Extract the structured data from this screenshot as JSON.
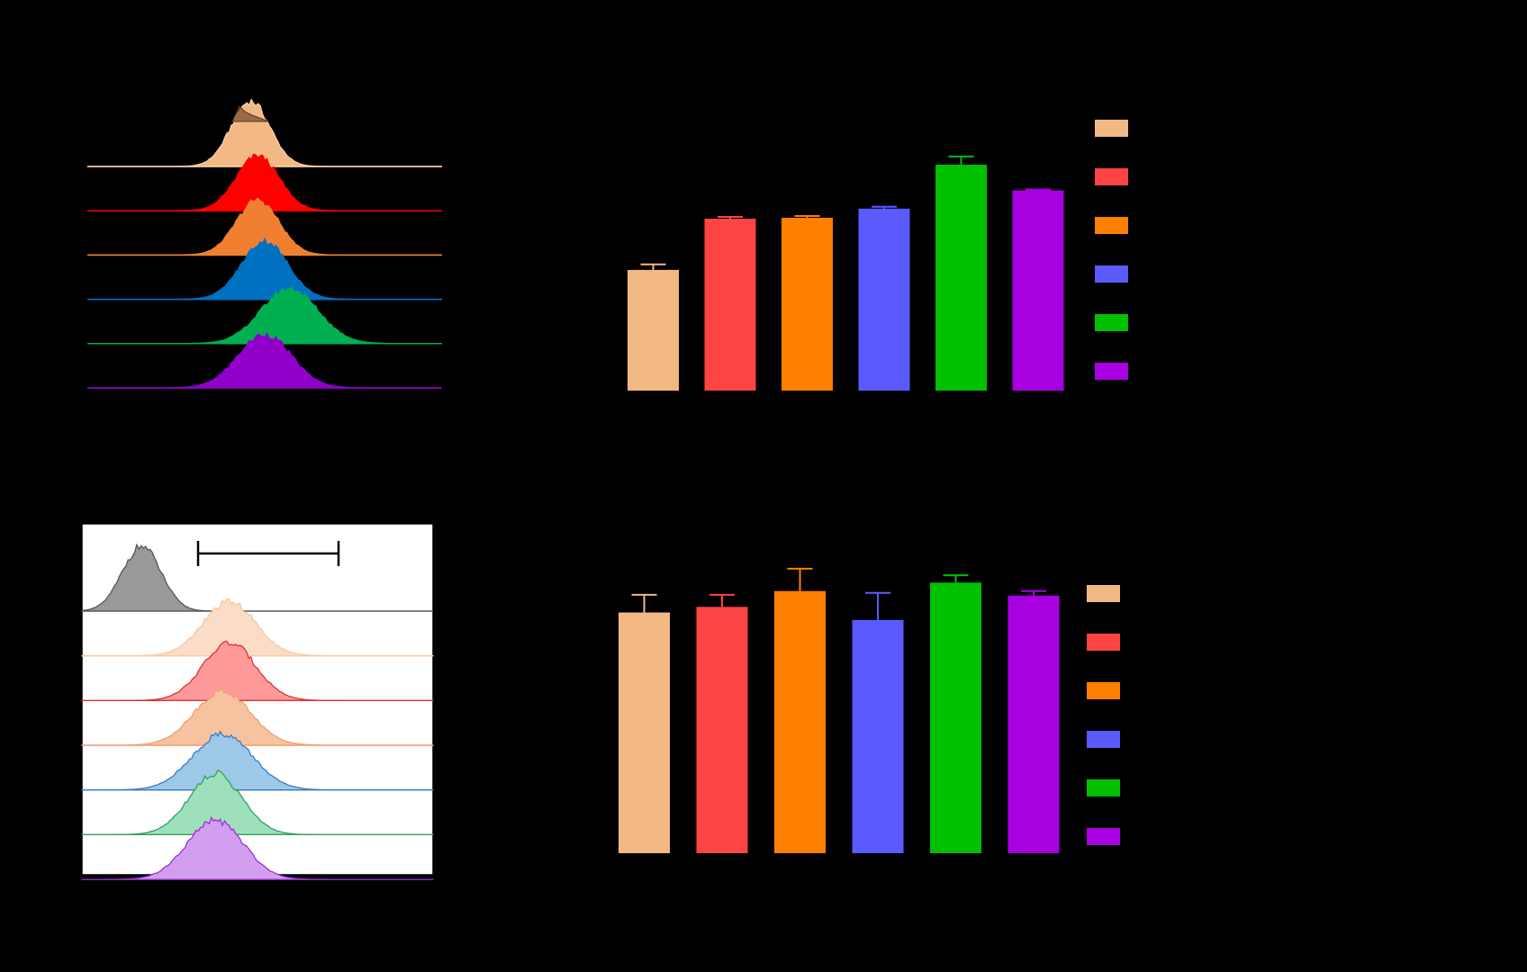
{
  "colors": {
    "background": "#000000",
    "panel_b_background": "#ffffff",
    "gray_control": "#999999"
  },
  "chart_data": [
    {
      "type": "histogram",
      "panel": "top-left",
      "stacked_offset": true,
      "series": [
        {
          "index": 0,
          "fill": "#f3b985",
          "stroke": "#f7c9a0",
          "peak_x": 0.46,
          "width": 0.055,
          "peak_h": 0.95,
          "overlay": true
        },
        {
          "index": 1,
          "fill": "#ff0000",
          "stroke": "#ff0000",
          "peak_x": 0.48,
          "width": 0.06,
          "peak_h": 0.8
        },
        {
          "index": 2,
          "fill": "#f08030",
          "stroke": "#f08030",
          "peak_x": 0.48,
          "width": 0.06,
          "peak_h": 0.8
        },
        {
          "index": 3,
          "fill": "#0070c0",
          "stroke": "#0070c0",
          "peak_x": 0.5,
          "width": 0.065,
          "peak_h": 0.85
        },
        {
          "index": 4,
          "fill": "#00b050",
          "stroke": "#00b050",
          "peak_x": 0.57,
          "width": 0.08,
          "peak_h": 0.8
        },
        {
          "index": 5,
          "fill": "#9000c8",
          "stroke": "#9000c8",
          "peak_x": 0.5,
          "width": 0.075,
          "peak_h": 0.78
        }
      ]
    },
    {
      "type": "bar",
      "panel": "top-right",
      "ylim": [
        0,
        250
      ],
      "values": [
        132,
        188,
        189,
        199,
        247,
        219
      ],
      "errors": [
        6,
        2,
        2,
        2,
        9,
        1
      ],
      "colors": [
        "#f3b985",
        "#ff4444",
        "#ff8000",
        "#5a5aff",
        "#00c000",
        "#a800e0"
      ],
      "legend": {
        "position": "right",
        "colors": [
          "#f3b985",
          "#ff4444",
          "#ff8000",
          "#5a5aff",
          "#00c000",
          "#a800e0"
        ]
      }
    },
    {
      "type": "histogram",
      "panel": "bottom-left",
      "stacked_offset": true,
      "gate_marker": true,
      "series": [
        {
          "index": 0,
          "fill": "#999999",
          "stroke": "#555555",
          "peak_x": 0.17,
          "width": 0.055,
          "peak_h": 0.9,
          "control": true
        },
        {
          "index": 1,
          "fill": "#fbdcc6",
          "stroke": "#f7c9a0",
          "peak_x": 0.42,
          "width": 0.075,
          "peak_h": 0.75
        },
        {
          "index": 2,
          "fill": "#ff9a9a",
          "stroke": "#e03030",
          "peak_x": 0.42,
          "width": 0.075,
          "peak_h": 0.8
        },
        {
          "index": 3,
          "fill": "#f7c2a0",
          "stroke": "#f0a070",
          "peak_x": 0.4,
          "width": 0.08,
          "peak_h": 0.75
        },
        {
          "index": 4,
          "fill": "#9ec8e8",
          "stroke": "#3a7cc0",
          "peak_x": 0.4,
          "width": 0.085,
          "peak_h": 0.78
        },
        {
          "index": 5,
          "fill": "#9ee0bc",
          "stroke": "#30a060",
          "peak_x": 0.38,
          "width": 0.075,
          "peak_h": 0.85
        },
        {
          "index": 6,
          "fill": "#d49ef0",
          "stroke": "#9a30d0",
          "peak_x": 0.38,
          "width": 0.08,
          "peak_h": 0.82
        }
      ]
    },
    {
      "type": "bar",
      "panel": "bottom-right",
      "ylim": [
        0,
        300
      ],
      "values": [
        258,
        264,
        281,
        250,
        290,
        276
      ],
      "errors": [
        19,
        13,
        24,
        29,
        8,
        5
      ],
      "colors": [
        "#f3b985",
        "#ff4444",
        "#ff8000",
        "#5a5aff",
        "#00c000",
        "#a800e0"
      ],
      "legend": {
        "position": "right",
        "colors": [
          "#f3b985",
          "#ff4444",
          "#ff8000",
          "#5a5aff",
          "#00c000",
          "#a800e0"
        ]
      }
    }
  ]
}
